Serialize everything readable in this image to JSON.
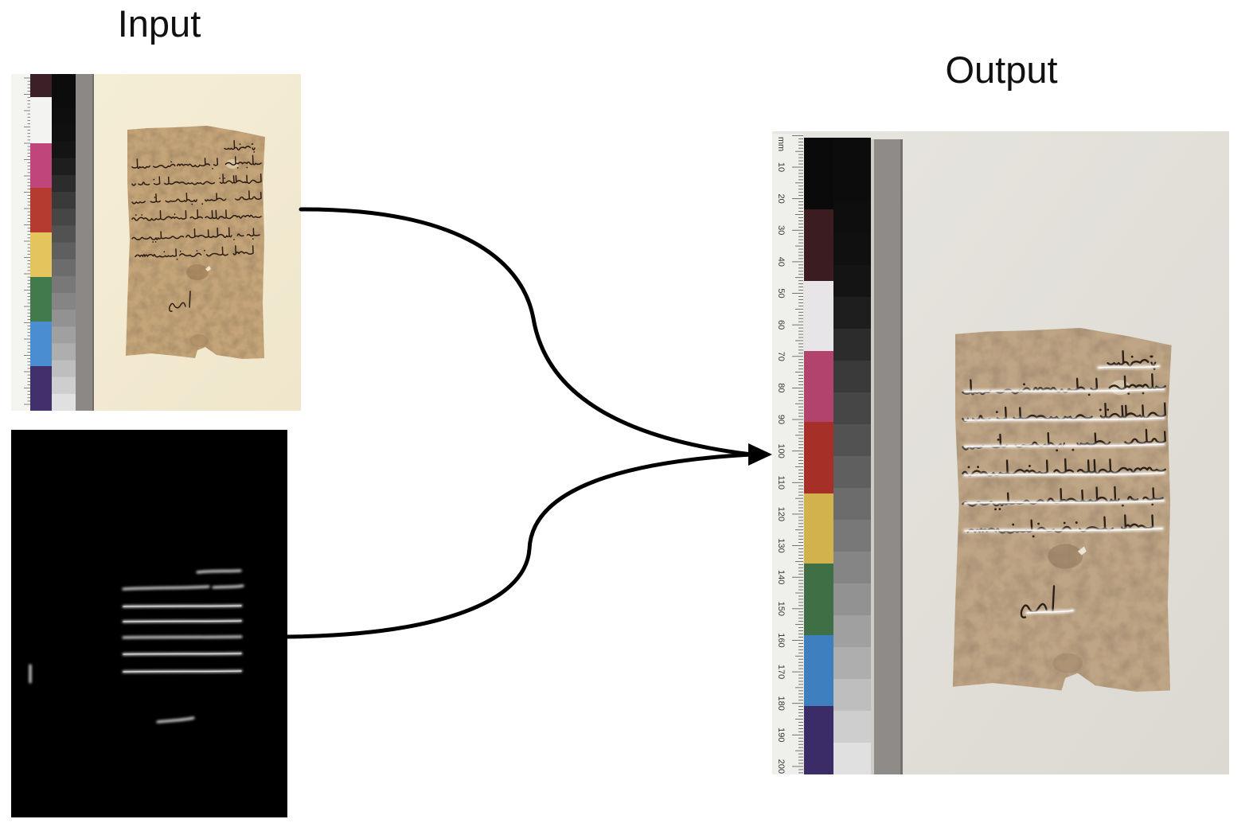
{
  "input_title": "Input",
  "output_title": "Output",
  "color_chart": {
    "input_swatches": [
      "#3b2027",
      "#f3f3f1",
      "#c0457a",
      "#b53a2f",
      "#e4c45c",
      "#427a4b",
      "#4a8dd0",
      "#42306c"
    ],
    "output_swatches": [
      "#0b0a0b",
      "#3b1c20",
      "#e7e5e7",
      "#b2436d",
      "#a62f28",
      "#d2b24c",
      "#3e6f45",
      "#3e7fbf",
      "#3b2b66"
    ]
  },
  "output_ruler": {
    "unit": "mm",
    "labels": [
      "10",
      "20",
      "30",
      "40",
      "50",
      "60",
      "70",
      "80",
      "90",
      "100",
      "110",
      "120",
      "130",
      "140",
      "150",
      "160",
      "170",
      "180",
      "190",
      "200"
    ]
  }
}
